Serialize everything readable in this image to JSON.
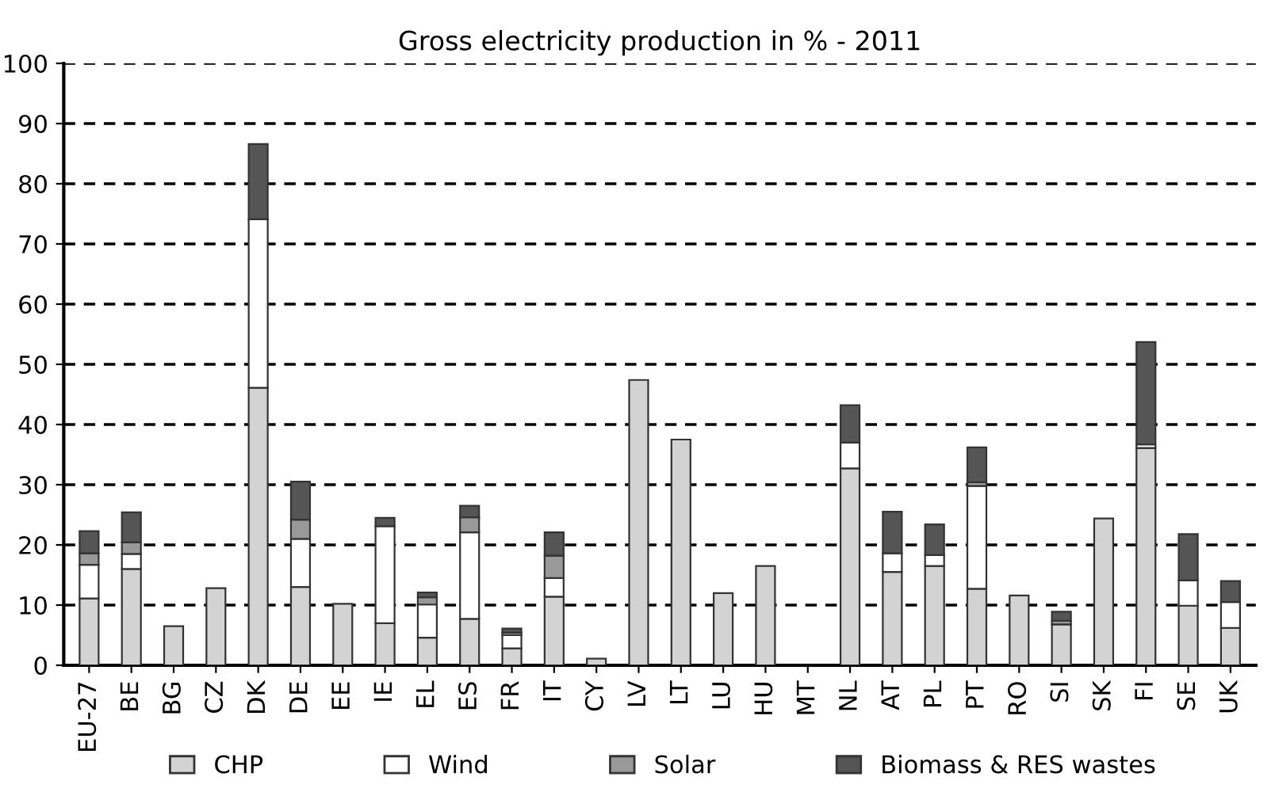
{
  "chart_data": {
    "type": "bar",
    "title": "Gross electricity production in % - 2011",
    "stacked": true,
    "categories": [
      "EU-27",
      "BE",
      "BG",
      "CZ",
      "DK",
      "DE",
      "EE",
      "IE",
      "EL",
      "ES",
      "FR",
      "IT",
      "CY",
      "LV",
      "LT",
      "LU",
      "HU",
      "MT",
      "NL",
      "AT",
      "PL",
      "PT",
      "RO",
      "SI",
      "SK",
      "FI",
      "SE",
      "UK"
    ],
    "series": [
      {
        "name": "CHP",
        "color": "#d3d3d3",
        "values": [
          11.1,
          16.0,
          6.5,
          12.8,
          46.1,
          13.0,
          10.2,
          7.0,
          4.6,
          7.7,
          2.8,
          11.4,
          1.1,
          47.4,
          37.5,
          12.0,
          16.5,
          null,
          32.7,
          15.5,
          16.5,
          12.7,
          11.6,
          6.8,
          24.4,
          36.1,
          9.9,
          6.2
        ]
      },
      {
        "name": "Wind",
        "color": "#ffffff",
        "values": [
          5.6,
          2.5,
          null,
          null,
          28.0,
          8.0,
          null,
          16.1,
          5.5,
          14.4,
          2.2,
          3.1,
          null,
          null,
          null,
          null,
          null,
          null,
          4.3,
          3.1,
          1.8,
          17.1,
          null,
          null,
          null,
          0.6,
          4.2,
          4.3
        ]
      },
      {
        "name": "Solar",
        "color": "#999999",
        "values": [
          1.9,
          1.9,
          null,
          null,
          null,
          3.2,
          null,
          null,
          1.2,
          2.5,
          0.4,
          3.7,
          null,
          null,
          null,
          null,
          null,
          null,
          null,
          null,
          null,
          0.6,
          null,
          0.6,
          null,
          null,
          null,
          null
        ]
      },
      {
        "name": "Biomass & RES wastes",
        "color": "#555555",
        "values": [
          3.7,
          5.0,
          null,
          null,
          12.5,
          6.3,
          null,
          1.4,
          0.8,
          1.9,
          0.7,
          3.9,
          null,
          null,
          null,
          null,
          null,
          null,
          6.2,
          6.9,
          5.1,
          5.8,
          null,
          1.5,
          null,
          17.0,
          7.7,
          3.5
        ]
      }
    ],
    "ylim": [
      0,
      100
    ],
    "yticks": [
      0,
      10,
      20,
      30,
      40,
      50,
      60,
      70,
      80,
      90,
      100
    ],
    "grid": "y",
    "legend": "bottom",
    "line_style": "dashed"
  }
}
